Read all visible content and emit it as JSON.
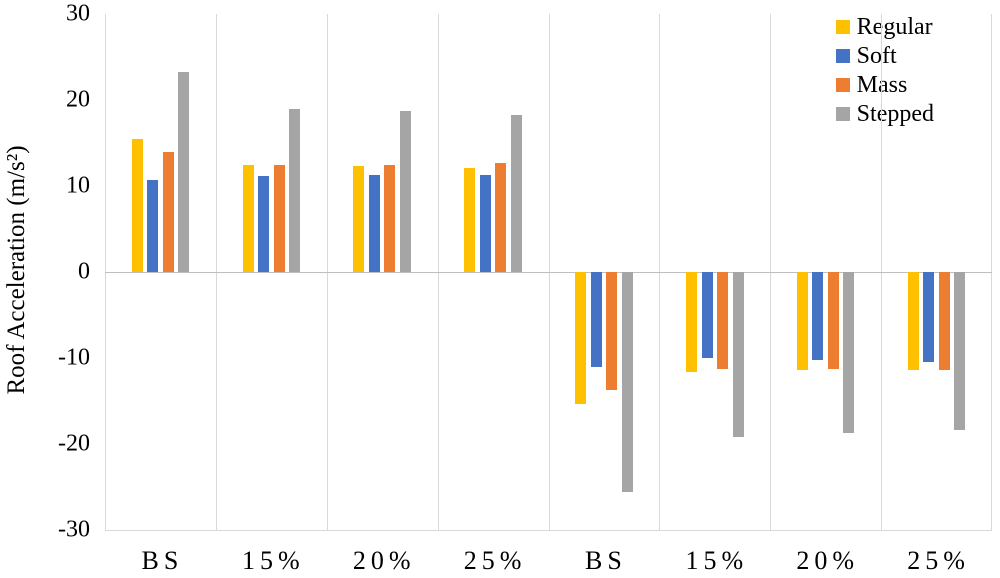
{
  "chart_data": {
    "type": "bar",
    "title": "",
    "xlabel": "",
    "ylabel": "Roof Acceleration (m/s²)",
    "ylim": [
      -30,
      30
    ],
    "yticks": [
      30,
      20,
      10,
      0,
      -10,
      -20,
      -30
    ],
    "categories": [
      "BS",
      "15%",
      "20%",
      "25%",
      "BS",
      "15%",
      "20%",
      "25%"
    ],
    "series": [
      {
        "name": "Regular",
        "color": "#FFC000",
        "values": [
          15.5,
          12.4,
          12.3,
          12.1,
          -15.3,
          -11.6,
          -11.4,
          -11.4
        ]
      },
      {
        "name": "Soft",
        "color": "#4472C4",
        "values": [
          10.7,
          11.2,
          11.3,
          11.3,
          -11.0,
          -10.0,
          -10.2,
          -10.5
        ]
      },
      {
        "name": "Mass",
        "color": "#ED7D31",
        "values": [
          14.0,
          12.5,
          12.5,
          12.7,
          -13.7,
          -11.3,
          -11.3,
          -11.4
        ]
      },
      {
        "name": "Stepped",
        "color": "#A5A5A5",
        "values": [
          23.3,
          19.0,
          18.7,
          18.2,
          -25.6,
          -19.2,
          -18.7,
          -18.4
        ]
      }
    ],
    "legend_position": "top-right",
    "grid": "vertical-category-separators",
    "gridline_color": "#d9d9d9",
    "zero_line_color": "#bfbfbf"
  }
}
